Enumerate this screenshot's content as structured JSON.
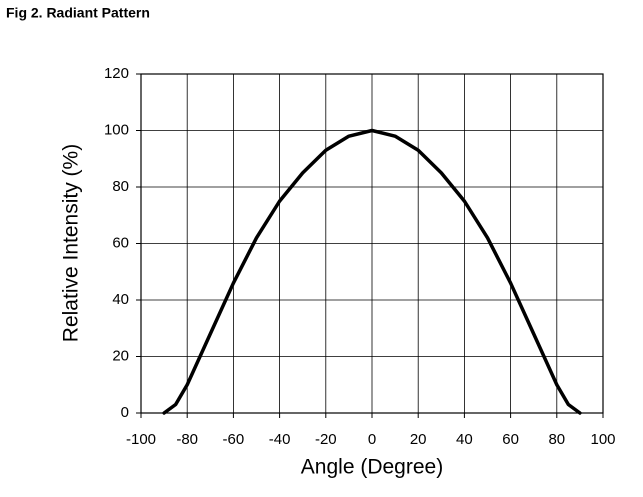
{
  "chart_data": {
    "type": "line",
    "title": "Fig 2. Radiant Pattern",
    "x_label": "Angle (Degree)",
    "y_label": "Relative Intensity (%)",
    "x": [
      -90,
      -85,
      -80,
      -70,
      -60,
      -50,
      -40,
      -30,
      -20,
      -10,
      0,
      10,
      20,
      30,
      40,
      50,
      60,
      70,
      80,
      85,
      90
    ],
    "series": [
      {
        "name": "Relative Intensity",
        "color": "#000000",
        "values": [
          0,
          3,
          10,
          28,
          46,
          62,
          75,
          85,
          93,
          98,
          100,
          98,
          93,
          85,
          75,
          62,
          46,
          28,
          10,
          3,
          0
        ]
      }
    ],
    "xlim": [
      -100,
      100
    ],
    "xticks": [
      -100,
      -80,
      -60,
      -40,
      -20,
      0,
      20,
      40,
      60,
      80,
      100
    ],
    "ylim": [
      0,
      120
    ],
    "yticks": [
      0,
      20,
      40,
      60,
      80,
      100,
      120
    ],
    "grid": true
  }
}
